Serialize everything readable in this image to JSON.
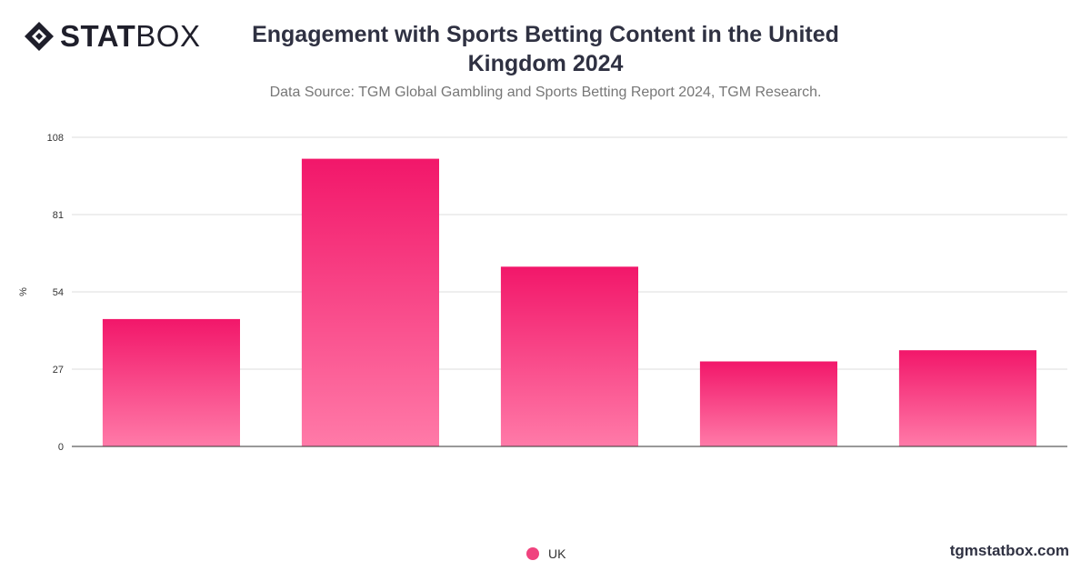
{
  "brand": {
    "logo_bold": "STAT",
    "logo_light": "BOX",
    "website": "tgmstatbox.com"
  },
  "colors": {
    "bar_top": "#f2176a",
    "bar_bottom": "#ff7aa8",
    "grid": "#dddddd",
    "axis": "#333333",
    "legend": "#f0437e"
  },
  "chart_data": {
    "type": "bar",
    "title": "Engagement with Sports Betting Content in the United Kingdom 2024",
    "subtitle": "Data Source: TGM Global Gambling and Sports Betting Report 2024, TGM Research.",
    "ylabel": "%",
    "xlabel": "",
    "ylim": [
      0,
      108
    ],
    "yticks": [
      0,
      27,
      54,
      81,
      108
    ],
    "categories": [
      "",
      "",
      "",
      "",
      ""
    ],
    "series": [
      {
        "name": "UK",
        "values": [
          44.5,
          100.5,
          62.8,
          29.7,
          33.6
        ]
      }
    ],
    "grid": true,
    "legend_position": "bottom-center"
  }
}
